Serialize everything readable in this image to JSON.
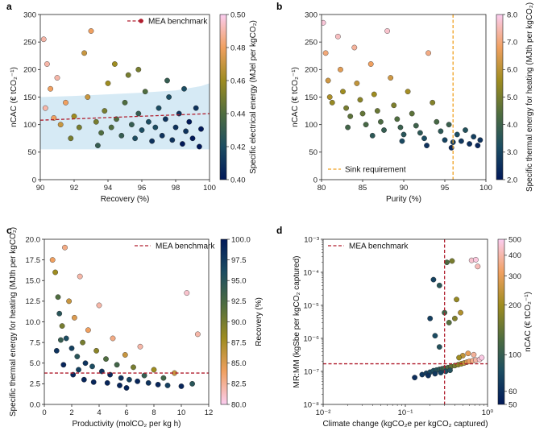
{
  "chart_data": [
    {
      "panel": "a",
      "type": "scatter",
      "xlabel": "Recovery (%)",
      "ylabel": "nCAC (€ tCO₂⁻¹)",
      "xlim": [
        90,
        100
      ],
      "ylim": [
        0,
        300
      ],
      "xticks": [
        "90",
        "92",
        "94",
        "96",
        "98",
        "100"
      ],
      "yticks": [
        "0",
        "50",
        "100",
        "150",
        "200",
        "250",
        "300"
      ],
      "legend": "MEA benchmark",
      "benchmark": {
        "x": [
          90,
          100
        ],
        "y": [
          108,
          120
        ]
      },
      "band": {
        "x": [
          90,
          92,
          94,
          96,
          98,
          99.5,
          100
        ],
        "lower": [
          55,
          55,
          55,
          55,
          55,
          55,
          55
        ],
        "upper": [
          150,
          152,
          155,
          158,
          162,
          170,
          175
        ]
      },
      "colorbar": {
        "label": "Specific electrical energy (MJel per kgCO₂)",
        "ticks": [
          "0.40",
          "0.42",
          "0.44",
          "0.46",
          "0.48",
          "0.50"
        ],
        "range": [
          0.4,
          0.5
        ]
      },
      "points": [
        [
          90.2,
          255,
          0.49
        ],
        [
          90.4,
          210,
          0.49
        ],
        [
          90.6,
          165,
          0.48
        ],
        [
          90.3,
          130,
          0.49
        ],
        [
          90.8,
          112,
          0.48
        ],
        [
          91.2,
          100,
          0.47
        ],
        [
          91.5,
          140,
          0.48
        ],
        [
          91.0,
          185,
          0.49
        ],
        [
          92.0,
          115,
          0.46
        ],
        [
          92.3,
          95,
          0.45
        ],
        [
          92.8,
          150,
          0.47
        ],
        [
          93.0,
          270,
          0.48
        ],
        [
          93.3,
          105,
          0.45
        ],
        [
          93.6,
          85,
          0.44
        ],
        [
          93.8,
          125,
          0.45
        ],
        [
          94.0,
          175,
          0.46
        ],
        [
          94.2,
          95,
          0.44
        ],
        [
          94.5,
          110,
          0.44
        ],
        [
          94.8,
          80,
          0.43
        ],
        [
          95.0,
          140,
          0.44
        ],
        [
          95.2,
          190,
          0.45
        ],
        [
          95.4,
          100,
          0.43
        ],
        [
          95.6,
          75,
          0.42
        ],
        [
          95.8,
          120,
          0.43
        ],
        [
          96.0,
          90,
          0.42
        ],
        [
          96.2,
          160,
          0.44
        ],
        [
          96.4,
          105,
          0.42
        ],
        [
          96.6,
          70,
          0.41
        ],
        [
          96.8,
          95,
          0.42
        ],
        [
          97.0,
          130,
          0.42
        ],
        [
          97.2,
          80,
          0.41
        ],
        [
          97.4,
          110,
          0.41
        ],
        [
          97.6,
          150,
          0.42
        ],
        [
          97.8,
          72,
          0.41
        ],
        [
          98.0,
          95,
          0.41
        ],
        [
          98.2,
          120,
          0.41
        ],
        [
          98.4,
          65,
          0.4
        ],
        [
          98.6,
          88,
          0.41
        ],
        [
          98.8,
          105,
          0.4
        ],
        [
          99.0,
          75,
          0.4
        ],
        [
          99.2,
          130,
          0.41
        ],
        [
          99.4,
          60,
          0.4
        ],
        [
          99.5,
          92,
          0.4
        ],
        [
          92.6,
          230,
          0.47
        ],
        [
          94.4,
          210,
          0.46
        ],
        [
          95.8,
          200,
          0.45
        ],
        [
          93.4,
          62,
          0.43
        ],
        [
          91.8,
          75,
          0.45
        ],
        [
          97.5,
          180,
          0.43
        ],
        [
          98.5,
          165,
          0.42
        ]
      ]
    },
    {
      "panel": "b",
      "type": "scatter",
      "xlabel": "Purity (%)",
      "ylabel": "nCAC (€ tCO₂⁻¹)",
      "xlim": [
        80,
        100
      ],
      "ylim": [
        0,
        300
      ],
      "xticks": [
        "80",
        "85",
        "90",
        "95",
        "100"
      ],
      "yticks": [
        "0",
        "50",
        "100",
        "150",
        "200",
        "250",
        "300"
      ],
      "legend": "Sink requirement",
      "sink_x": 96,
      "colorbar": {
        "label": "Specific thermal energy for heating (MJth per kgCO₂)",
        "ticks": [
          "2.0",
          "3.0",
          "4.0",
          "5.0",
          "6.0",
          "7.0",
          "8.0"
        ],
        "range": [
          2.0,
          8.0
        ]
      },
      "points": [
        [
          80.2,
          285,
          7.8
        ],
        [
          80.5,
          230,
          7.0
        ],
        [
          80.8,
          180,
          6.3
        ],
        [
          81.0,
          150,
          5.8
        ],
        [
          81.3,
          140,
          5.5
        ],
        [
          82.0,
          260,
          7.6
        ],
        [
          82.3,
          200,
          6.6
        ],
        [
          82.6,
          160,
          5.6
        ],
        [
          83.0,
          130,
          5.0
        ],
        [
          83.5,
          115,
          4.6
        ],
        [
          84.0,
          240,
          7.3
        ],
        [
          84.3,
          175,
          6.1
        ],
        [
          84.7,
          145,
          5.3
        ],
        [
          85.0,
          120,
          4.7
        ],
        [
          85.4,
          100,
          4.2
        ],
        [
          86.0,
          210,
          6.8
        ],
        [
          86.4,
          155,
          5.6
        ],
        [
          86.8,
          125,
          4.8
        ],
        [
          87.2,
          105,
          4.3
        ],
        [
          87.6,
          90,
          3.8
        ],
        [
          88.0,
          270,
          7.7
        ],
        [
          88.4,
          185,
          6.3
        ],
        [
          88.8,
          135,
          5.1
        ],
        [
          89.2,
          110,
          4.4
        ],
        [
          89.6,
          95,
          3.9
        ],
        [
          90.0,
          82,
          3.5
        ],
        [
          90.5,
          160,
          5.7
        ],
        [
          91.0,
          120,
          4.6
        ],
        [
          91.5,
          98,
          4.0
        ],
        [
          92.0,
          85,
          3.6
        ],
        [
          92.5,
          75,
          3.2
        ],
        [
          93.0,
          230,
          7.1
        ],
        [
          93.5,
          140,
          5.2
        ],
        [
          94.0,
          105,
          4.2
        ],
        [
          94.5,
          88,
          3.6
        ],
        [
          95.0,
          72,
          3.0
        ],
        [
          95.5,
          100,
          3.9
        ],
        [
          96.0,
          68,
          2.8
        ],
        [
          96.5,
          82,
          3.2
        ],
        [
          97.0,
          70,
          2.7
        ],
        [
          97.5,
          90,
          3.4
        ],
        [
          98.0,
          65,
          2.5
        ],
        [
          98.5,
          78,
          2.9
        ],
        [
          99.0,
          62,
          2.3
        ],
        [
          99.3,
          72,
          2.6
        ],
        [
          83.2,
          95,
          4.1
        ],
        [
          86.2,
          80,
          3.6
        ],
        [
          89.8,
          70,
          3.1
        ],
        [
          92.8,
          62,
          2.6
        ],
        [
          95.8,
          58,
          2.3
        ]
      ]
    },
    {
      "panel": "c",
      "type": "scatter",
      "xlabel": "Productivity (molCO₂ per kg h)",
      "ylabel": "Specific thermal energy for heating (MJth per kgCO₂)",
      "xlim": [
        0,
        12
      ],
      "ylim": [
        0,
        20
      ],
      "xticks": [
        "0",
        "2",
        "4",
        "6",
        "8",
        "10",
        "12"
      ],
      "yticks": [
        "0.0",
        "2.5",
        "5.0",
        "7.5",
        "10.0",
        "12.5",
        "15.0",
        "17.5",
        "20.0"
      ],
      "legend": "MEA benchmark",
      "benchmark_y": 3.8,
      "colorbar": {
        "label": "Recovery (%)",
        "ticks": [
          "80.0",
          "82.5",
          "85.0",
          "87.5",
          "90.0",
          "92.5",
          "95.0",
          "97.5",
          "100.0"
        ],
        "range": [
          80,
          100
        ]
      },
      "points": [
        [
          0.6,
          17.5,
          84
        ],
        [
          0.8,
          16.0,
          88
        ],
        [
          1.0,
          13.0,
          92
        ],
        [
          1.1,
          11.0,
          95
        ],
        [
          1.3,
          9.5,
          90
        ],
        [
          1.5,
          19.0,
          83
        ],
        [
          1.6,
          8.0,
          96
        ],
        [
          1.8,
          12.5,
          86
        ],
        [
          2.0,
          6.8,
          97
        ],
        [
          2.2,
          10.5,
          85
        ],
        [
          2.4,
          5.8,
          95
        ],
        [
          2.6,
          15.5,
          82
        ],
        [
          2.8,
          7.5,
          90
        ],
        [
          3.0,
          5.0,
          98
        ],
        [
          3.2,
          9.0,
          84
        ],
        [
          3.5,
          4.6,
          96
        ],
        [
          3.8,
          6.5,
          89
        ],
        [
          4.0,
          12.0,
          82
        ],
        [
          4.2,
          4.0,
          98
        ],
        [
          4.5,
          5.5,
          92
        ],
        [
          4.8,
          3.6,
          99
        ],
        [
          5.0,
          8.0,
          83
        ],
        [
          5.3,
          4.8,
          93
        ],
        [
          5.6,
          3.2,
          98
        ],
        [
          5.9,
          6.0,
          86
        ],
        [
          6.2,
          3.0,
          97
        ],
        [
          6.5,
          4.5,
          90
        ],
        [
          6.8,
          2.8,
          99
        ],
        [
          7.0,
          7.0,
          82
        ],
        [
          7.3,
          3.5,
          94
        ],
        [
          7.6,
          2.6,
          98
        ],
        [
          8.0,
          4.2,
          88
        ],
        [
          8.3,
          2.4,
          99
        ],
        [
          8.7,
          3.2,
          93
        ],
        [
          9.0,
          2.3,
          97
        ],
        [
          9.5,
          3.8,
          86
        ],
        [
          10.0,
          2.2,
          99
        ],
        [
          10.4,
          13.5,
          81
        ],
        [
          10.8,
          2.5,
          95
        ],
        [
          11.2,
          8.5,
          82
        ],
        [
          0.9,
          6.5,
          98
        ],
        [
          1.4,
          4.8,
          99
        ],
        [
          2.1,
          3.6,
          99
        ],
        [
          2.9,
          3.0,
          99
        ],
        [
          3.6,
          2.7,
          99
        ],
        [
          1.2,
          7.8,
          94
        ],
        [
          2.5,
          4.2,
          97
        ],
        [
          4.6,
          2.6,
          99
        ],
        [
          5.5,
          2.3,
          99
        ],
        [
          6.0,
          2.0,
          99
        ]
      ]
    },
    {
      "panel": "d",
      "type": "scatter",
      "xscale": "log",
      "yscale": "log",
      "xlabel": "Climate change (kgCO₂e per kgCO₂ captured)",
      "ylabel": "MR:MM (kgSbe per kgCO₂ captured)",
      "xlim": [
        0.01,
        1
      ],
      "ylim": [
        1e-08,
        0.001
      ],
      "xticks": [
        "10⁻²",
        "10⁻¹",
        "10⁰"
      ],
      "yticks": [
        "10⁻⁸",
        "10⁻⁷",
        "10⁻⁶",
        "10⁻⁵",
        "10⁻⁴",
        "10⁻³"
      ],
      "legend": "MEA benchmark",
      "benchmark": {
        "x": 0.3,
        "y": 1.7e-07
      },
      "colorbar": {
        "label": "nCAC (€ tCO₂⁻¹)",
        "ticks": [
          "50",
          "60",
          "100",
          "200",
          "300",
          "400",
          "500"
        ],
        "range": [
          50,
          500
        ]
      },
      "points": [
        [
          0.13,
          6.5e-08,
          60
        ],
        [
          0.16,
          8e-08,
          65
        ],
        [
          0.18,
          8.8e-08,
          70
        ],
        [
          0.2,
          9.5e-08,
          75
        ],
        [
          0.22,
          1.05e-07,
          80
        ],
        [
          0.24,
          1.1e-07,
          85
        ],
        [
          0.26,
          1.15e-07,
          90
        ],
        [
          0.28,
          1.2e-07,
          100
        ],
        [
          0.3,
          1.25e-07,
          110
        ],
        [
          0.33,
          1.3e-07,
          120
        ],
        [
          0.36,
          1.4e-07,
          140
        ],
        [
          0.4,
          1.5e-07,
          160
        ],
        [
          0.44,
          1.6e-07,
          180
        ],
        [
          0.48,
          1.7e-07,
          200
        ],
        [
          0.52,
          1.8e-07,
          240
        ],
        [
          0.56,
          1.9e-07,
          280
        ],
        [
          0.6,
          2e-07,
          320
        ],
        [
          0.66,
          2.1e-07,
          360
        ],
        [
          0.72,
          2.2e-07,
          400
        ],
        [
          0.8,
          2.3e-07,
          450
        ],
        [
          0.19,
          7.5e-08,
          62
        ],
        [
          0.23,
          8.5e-08,
          66
        ],
        [
          0.27,
          9.2e-08,
          72
        ],
        [
          0.31,
          1e-07,
          78
        ],
        [
          0.35,
          1.08e-07,
          85
        ],
        [
          0.2,
          4e-06,
          70
        ],
        [
          0.23,
          1.2e-06,
          78
        ],
        [
          0.26,
          5.5e-07,
          85
        ],
        [
          0.22,
          6e-05,
          72
        ],
        [
          0.26,
          4e-05,
          90
        ],
        [
          0.32,
          0.0002,
          120
        ],
        [
          0.37,
          0.00022,
          160
        ],
        [
          0.34,
          3e-06,
          130
        ],
        [
          0.3,
          6e-06,
          110
        ],
        [
          0.42,
          1.5e-05,
          190
        ],
        [
          0.47,
          6e-06,
          220
        ],
        [
          0.4,
          4e-06,
          170
        ],
        [
          0.64,
          0.00023,
          450
        ],
        [
          0.72,
          0.00024,
          470
        ],
        [
          0.76,
          0.00015,
          420
        ],
        [
          0.58,
          3.5e-07,
          300
        ],
        [
          0.5,
          3e-07,
          240
        ],
        [
          0.68,
          3.2e-07,
          380
        ],
        [
          0.45,
          2.6e-07,
          200
        ],
        [
          0.85,
          2.6e-07,
          480
        ]
      ]
    }
  ]
}
